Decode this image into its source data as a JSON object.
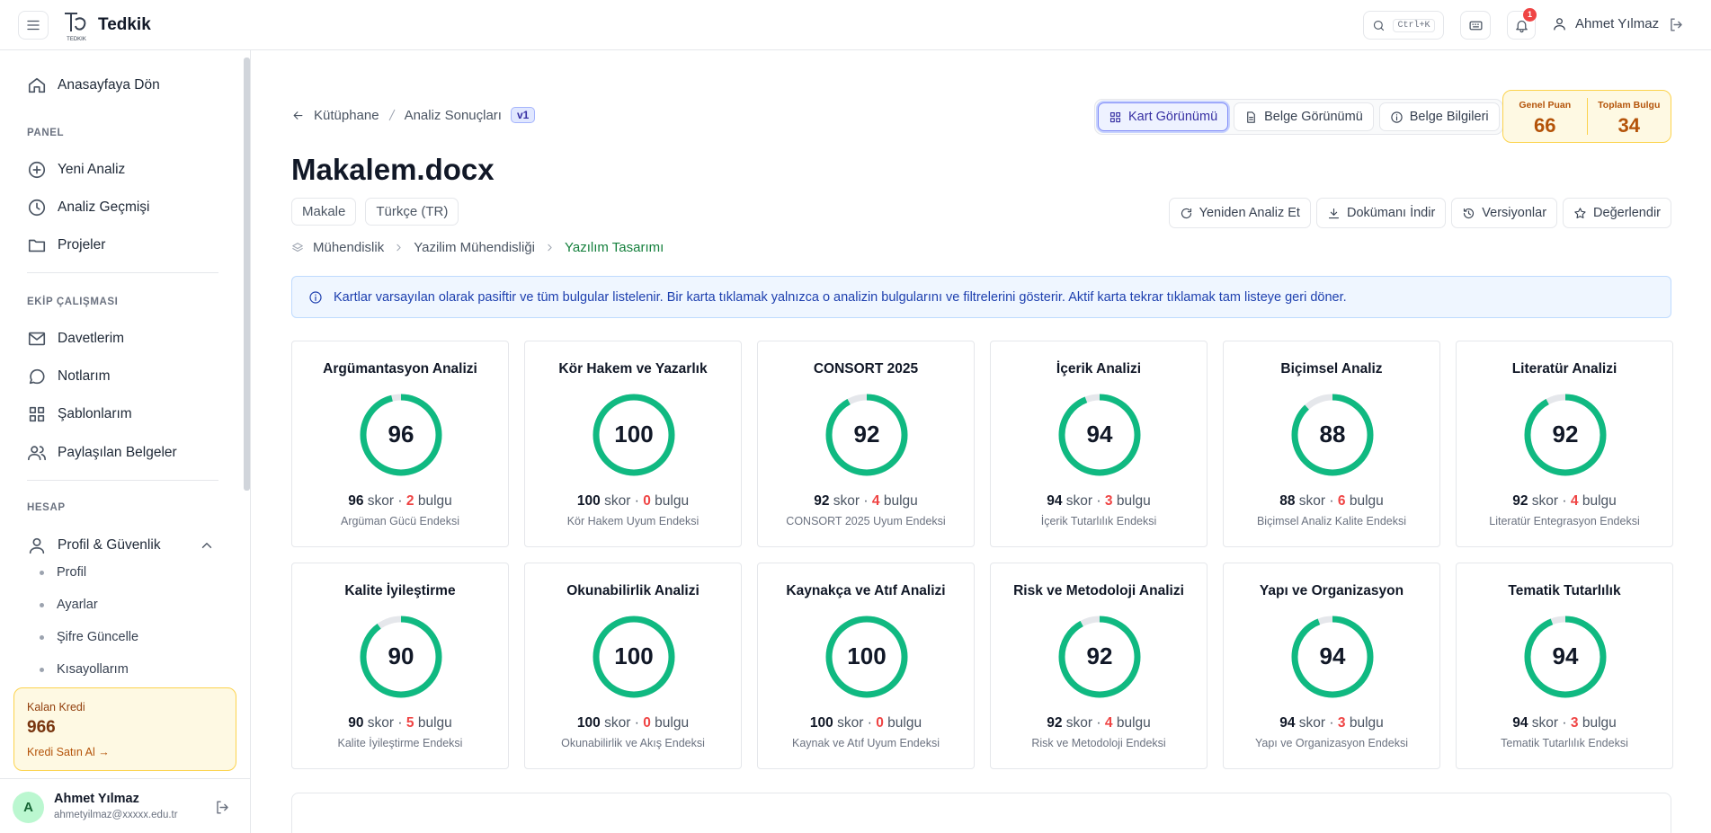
{
  "header": {
    "brand": "Tedkik",
    "logo_text": "TEDKIK",
    "search_shortcut": "Ctrl+K",
    "notification_count": 1,
    "user_name": "Ahmet Yılmaz"
  },
  "sidebar": {
    "home": "Anasayfaya Dön",
    "sections": [
      {
        "title": "PANEL",
        "items": [
          "Yeni Analiz",
          "Analiz Geçmişi",
          "Projeler"
        ]
      },
      {
        "title": "EKİP ÇALIŞMASI",
        "items": [
          "Davetlerim",
          "Notlarım",
          "Şablonlarım",
          "Paylaşılan Belgeler"
        ]
      },
      {
        "title": "HESAP",
        "items": [
          "Profil & Güvenlik"
        ]
      }
    ],
    "subitems": [
      "Profil",
      "Ayarlar",
      "Şifre Güncelle",
      "Kısayollarım"
    ],
    "credit": {
      "label": "Kalan Kredi",
      "amount": 966,
      "link": "Kredi Satın Al →"
    },
    "user": {
      "initial": "A",
      "name": "Ahmet Yılmaz",
      "email": "ahmetyilmaz@xxxxx.edu.tr"
    }
  },
  "main": {
    "breadcrumb": [
      "Kütüphane",
      "Analiz Sonuçları"
    ],
    "version": "v1",
    "view_tabs": [
      "Kart Görünümü",
      "Belge Görünümü",
      "Belge Bilgileri"
    ],
    "summary": [
      {
        "label": "Genel Puan",
        "value": 66
      },
      {
        "label": "Toplam Bulgu",
        "value": 34
      }
    ],
    "doc_title": "Makalem.docx",
    "tags": [
      "Makale",
      "Türkçe (TR)"
    ],
    "actions": [
      "Yeniden Analiz Et",
      "Dokümanı İndir",
      "Versiyonlar",
      "Değerlendir"
    ],
    "category_path": [
      "Mühendislik",
      "Yazilim Mühendisliği",
      "Yazılım Tasarımı"
    ],
    "info": "Kartlar varsayılan olarak pasiftir ve tüm bulgular listelenir. Bir karta tıklamak yalnızca o analizin bulgularını ve filtrelerini gösterir. Aktif karta tekrar tıklamak tam listeye geri döner.",
    "score_word": "skor",
    "separator": "·",
    "findings_word": "bulgu",
    "score_range": [
      0,
      100
    ],
    "cards": [
      {
        "title": "Argümantasyon Analizi",
        "score": 96,
        "findings": 2,
        "index": "Argüman Gücü Endeksi"
      },
      {
        "title": "Kör Hakem ve Yazarlık",
        "score": 100,
        "findings": 0,
        "index": "Kör Hakem Uyum Endeksi"
      },
      {
        "title": "CONSORT 2025",
        "score": 92,
        "findings": 4,
        "index": "CONSORT 2025 Uyum Endeksi"
      },
      {
        "title": "İçerik Analizi",
        "score": 94,
        "findings": 3,
        "index": "İçerik Tutarlılık Endeksi"
      },
      {
        "title": "Biçimsel Analiz",
        "score": 88,
        "findings": 6,
        "index": "Biçimsel Analiz Kalite Endeksi"
      },
      {
        "title": "Literatür Analizi",
        "score": 92,
        "findings": 4,
        "index": "Literatür Entegrasyon Endeksi"
      },
      {
        "title": "Kalite İyileştirme",
        "score": 90,
        "findings": 5,
        "index": "Kalite İyileştirme Endeksi"
      },
      {
        "title": "Okunabilirlik Analizi",
        "score": 100,
        "findings": 0,
        "index": "Okunabilirlik ve Akış Endeksi"
      },
      {
        "title": "Kaynakça ve Atıf Analizi",
        "score": 100,
        "findings": 0,
        "index": "Kaynak ve Atıf Uyum Endeksi"
      },
      {
        "title": "Risk ve Metodoloji Analizi",
        "score": 92,
        "findings": 4,
        "index": "Risk ve Metodoloji Endeksi"
      },
      {
        "title": "Yapı ve Organizasyon",
        "score": 94,
        "findings": 3,
        "index": "Yapı ve Organizasyon Endeksi"
      },
      {
        "title": "Tematik Tutarlılık",
        "score": 94,
        "findings": 3,
        "index": "Tematik Tutarlılık Endeksi"
      }
    ]
  }
}
